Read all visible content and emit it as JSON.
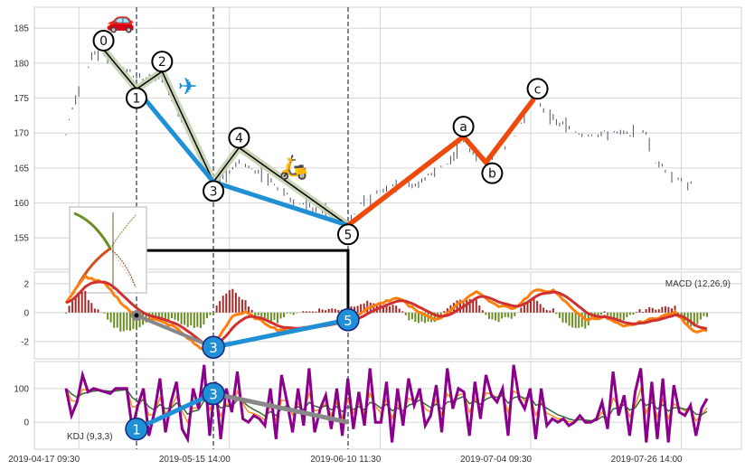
{
  "chart_data": {
    "type": "line",
    "title": "",
    "x_tick_labels": [
      {
        "index": 4,
        "label": "2019-04-17 09:30"
      },
      {
        "index": 51,
        "label": "2019-05-15 14:00"
      },
      {
        "index": 98,
        "label": "2019-06-10 11:30"
      },
      {
        "index": 145,
        "label": "2019-07-04 09:30"
      },
      {
        "index": 192,
        "label": "2019-07-26 14:00"
      }
    ],
    "x_range": [
      0,
      200
    ],
    "grid": true,
    "dashed_marker_indices": [
      22,
      46,
      88
    ],
    "price_panel": {
      "ylim": [
        150.5,
        188
      ],
      "yticks": [
        155,
        160,
        165,
        170,
        175,
        180,
        185
      ],
      "price_outline": [
        [
          0,
          170
        ],
        [
          3,
          175
        ],
        [
          6,
          178
        ],
        [
          8,
          181
        ],
        [
          12,
          181.5
        ],
        [
          22,
          178
        ],
        [
          30,
          178
        ],
        [
          36,
          172
        ],
        [
          42,
          167
        ],
        [
          46,
          163
        ],
        [
          50,
          164
        ],
        [
          54,
          166
        ],
        [
          62,
          164
        ],
        [
          72,
          160
        ],
        [
          80,
          159
        ],
        [
          88,
          157
        ],
        [
          92,
          160
        ],
        [
          100,
          162
        ],
        [
          110,
          163
        ],
        [
          120,
          166
        ],
        [
          124,
          169
        ],
        [
          131,
          165
        ],
        [
          140,
          170
        ],
        [
          146,
          175
        ],
        [
          152,
          172
        ],
        [
          160,
          170
        ],
        [
          166,
          170
        ],
        [
          176,
          170
        ],
        [
          181,
          170
        ],
        [
          184,
          166
        ],
        [
          192,
          163
        ],
        [
          196,
          162.5
        ]
      ],
      "wave_points": [
        {
          "label": "0",
          "index": 12,
          "price": 181.8,
          "pos": "above"
        },
        {
          "label": "1",
          "index": 22,
          "price": 176.3,
          "pos": "on"
        },
        {
          "label": "2",
          "index": 30,
          "price": 178.8,
          "pos": "above"
        },
        {
          "label": "3",
          "index": 46,
          "price": 163.0,
          "pos": "on"
        },
        {
          "label": "4",
          "index": 54,
          "price": 167.9,
          "pos": "above"
        },
        {
          "label": "5",
          "index": 88,
          "price": 156.8,
          "pos": "on"
        }
      ],
      "blue_wave": [
        [
          22,
          176.3
        ],
        [
          46,
          163.0
        ],
        [
          88,
          156.8
        ]
      ],
      "correction_points": [
        {
          "label": "a",
          "index": 124,
          "price": 169.5,
          "pos": "above"
        },
        {
          "label": "b",
          "index": 131,
          "price": 165.8,
          "pos": "below"
        },
        {
          "label": "c",
          "index": 146,
          "price": 174.9,
          "pos": "above"
        }
      ],
      "connector": [
        [
          25,
          153.2
        ],
        [
          88,
          153.2
        ]
      ],
      "icons": [
        {
          "name": "car-icon",
          "glyph": "🚗",
          "index": 17,
          "price": 186.3
        },
        {
          "name": "airplane-icon",
          "glyph": "✈",
          "index": 38,
          "price": 176.8
        },
        {
          "name": "scooter-icon",
          "glyph": "🛵",
          "index": 71,
          "price": 165.3
        }
      ]
    },
    "macd_panel": {
      "label": "MACD (12,26,9)",
      "ylim": [
        -3.2,
        2.8
      ],
      "yticks": [
        -2,
        0,
        2
      ],
      "dif_outline": [
        [
          0,
          0.7
        ],
        [
          6,
          2.5
        ],
        [
          12,
          2
        ],
        [
          18,
          0.5
        ],
        [
          22,
          -0.3
        ],
        [
          28,
          -0.5
        ],
        [
          34,
          -1
        ],
        [
          42,
          -2.5
        ],
        [
          46,
          -2.3
        ],
        [
          52,
          -0.2
        ],
        [
          56,
          0
        ],
        [
          66,
          -1.2
        ],
        [
          76,
          -1
        ],
        [
          88,
          -0.5
        ],
        [
          96,
          0.5
        ],
        [
          104,
          1
        ],
        [
          110,
          0
        ],
        [
          116,
          -0.5
        ],
        [
          122,
          0.5
        ],
        [
          128,
          1.5
        ],
        [
          134,
          0.5
        ],
        [
          140,
          0.3
        ],
        [
          146,
          1.5
        ],
        [
          152,
          1.5
        ],
        [
          162,
          -0.5
        ],
        [
          168,
          -0.3
        ],
        [
          174,
          -1
        ],
        [
          182,
          -0.5
        ],
        [
          190,
          0
        ],
        [
          196,
          -1.3
        ],
        [
          200,
          -1.2
        ]
      ],
      "grey_wave": [
        [
          22,
          -0.2
        ],
        [
          46,
          -2.4
        ]
      ],
      "blue_wave": [
        [
          46,
          -2.4
        ],
        [
          88,
          -0.5
        ]
      ],
      "wave_points": [
        {
          "label": "3",
          "index": 46,
          "value": -2.4
        },
        {
          "label": "5",
          "index": 88,
          "value": -0.5
        }
      ]
    },
    "kdj_panel": {
      "label": "KDJ (9,3,3)",
      "ylim": [
        -80,
        180
      ],
      "yticks": [
        0,
        100
      ],
      "j_values": [
        100,
        20,
        60,
        140,
        90,
        100,
        95,
        90,
        85,
        100,
        100,
        100,
        -20,
        50,
        100,
        -40,
        30,
        130,
        -30,
        60,
        120,
        -20,
        -50,
        100,
        40,
        170,
        -40,
        120,
        -50,
        100,
        30,
        150,
        10,
        0,
        20,
        10,
        -10,
        100,
        -50,
        140,
        60,
        -30,
        100,
        -10,
        160,
        -30,
        40,
        80,
        -20,
        100,
        -40,
        130,
        -20,
        90,
        -10,
        160,
        0,
        0,
        120,
        -60,
        100,
        -10,
        130,
        50,
        100,
        -10,
        20,
        110,
        -30,
        160,
        40,
        100,
        90,
        -40,
        120,
        10,
        140,
        80,
        60,
        100,
        -40,
        170,
        70,
        40,
        100,
        -50,
        100,
        -10,
        10,
        0,
        10,
        -10,
        0,
        20,
        0,
        0,
        10,
        60,
        -20,
        150,
        20,
        80,
        -40,
        90,
        160,
        -60,
        120,
        -50,
        130,
        -60,
        110,
        30,
        20,
        50,
        -40,
        40,
        70
      ],
      "blue_wave": [
        [
          22,
          -20
        ],
        [
          46,
          85
        ]
      ],
      "grey_wave": [
        [
          46,
          85
        ],
        [
          88,
          0
        ]
      ],
      "wave_points": [
        {
          "label": "1",
          "index": 22,
          "value": -20
        },
        {
          "label": "3",
          "index": 46,
          "value": 85
        }
      ]
    },
    "colors": {
      "candle": "#4a5560",
      "band": "#c5d0b0",
      "blue": "#1f8fd6",
      "orange": "#ee4a0c",
      "dif": "#ff7f0e",
      "dea": "#d03030",
      "hist_pos": "#a52a2a",
      "hist_neg": "#6b8e23",
      "j": "#8b008b",
      "k": "#ff9020",
      "d": "#3a6b3a",
      "grey": "#888888",
      "grid": "#cccccc",
      "dash": "#5a6a7a"
    }
  }
}
